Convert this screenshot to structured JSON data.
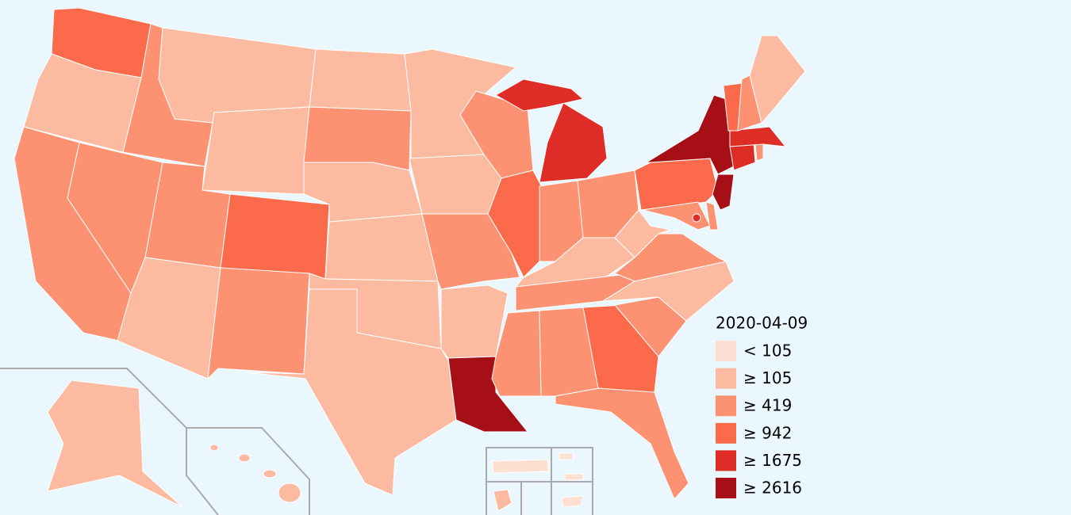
{
  "legend": {
    "title": "2020-04-09",
    "items": [
      {
        "label": "< 105",
        "color": "#fee0d2"
      },
      {
        "label": "≥ 105",
        "color": "#fcbba1"
      },
      {
        "label": "≥ 419",
        "color": "#fc9272"
      },
      {
        "label": "≥ 942",
        "color": "#fb6a4a"
      },
      {
        "label": "≥ 1675",
        "color": "#de2d26"
      },
      {
        "label": "≥ 2616",
        "color": "#a50f15"
      }
    ]
  }
}
